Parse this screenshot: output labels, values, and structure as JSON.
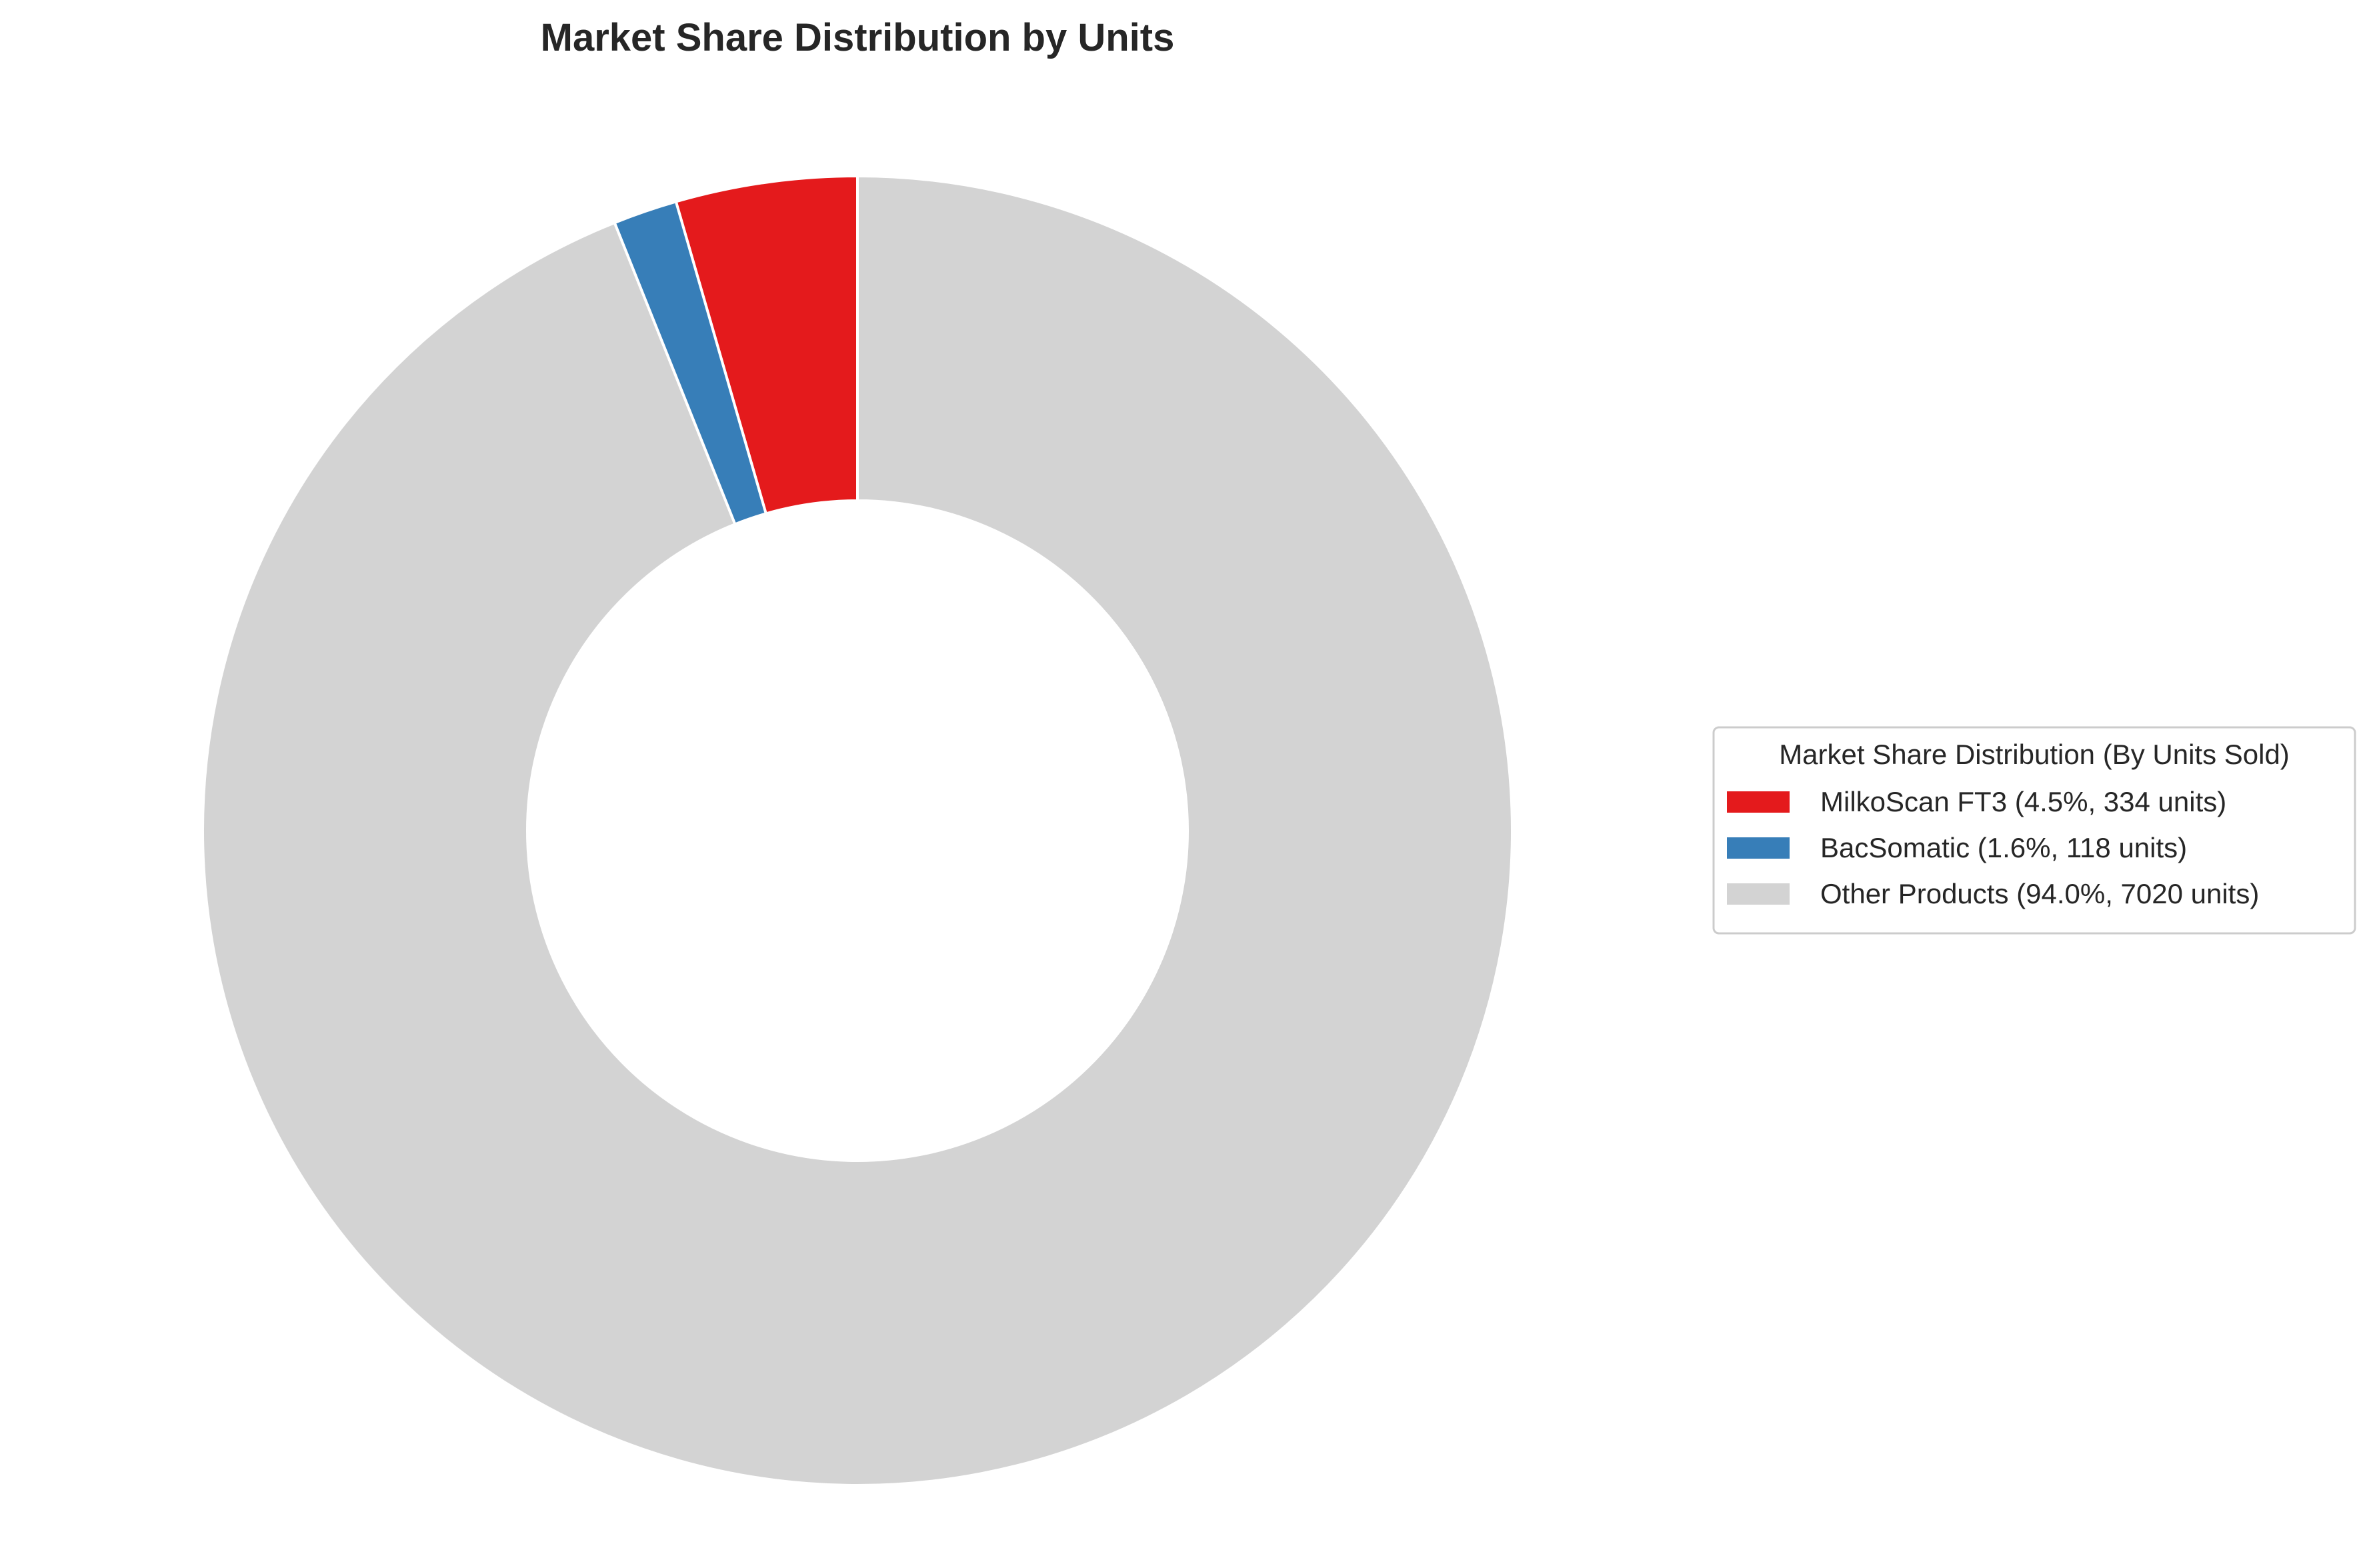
{
  "chart_data": {
    "type": "pie",
    "title": "Market Share Distribution by Units",
    "donut": true,
    "categories": [
      "MilkoScan FT3",
      "BacSomatic",
      "Other Products"
    ],
    "values": [
      334,
      118,
      7020
    ],
    "percentages": [
      4.5,
      1.6,
      94.0
    ],
    "colors": [
      "#e41a1c",
      "#377eb8",
      "#d3d3d3"
    ],
    "start_angle_deg": 90,
    "direction": "counterclockwise",
    "legend": {
      "title": "Market Share Distribution (By Units Sold)",
      "placement": "right",
      "entries": [
        "MilkoScan FT3 (4.5%, 334 units)",
        "BacSomatic (1.6%, 118 units)",
        "Other Products (94.0%, 7020 units)"
      ]
    }
  }
}
